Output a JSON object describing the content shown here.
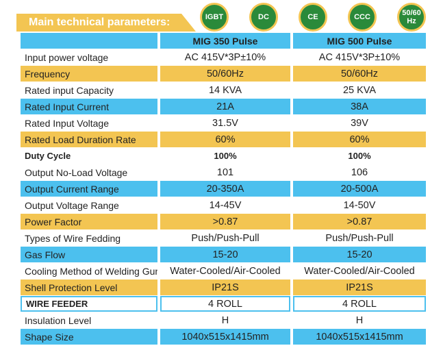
{
  "header": {
    "title": "Main technical parameters:",
    "badges": [
      "IGBT",
      "DC",
      "CE",
      "CCC",
      "50/60 Hz"
    ]
  },
  "table": {
    "columns": [
      "MIG 350 Pulse",
      "MIG 500 Pulse"
    ],
    "rows": [
      [
        "Input power voltage",
        "AC 415V*3P±10%",
        "AC 415V*3P±10%"
      ],
      [
        "Frequency",
        "50/60Hz",
        "50/60Hz"
      ],
      [
        "Rated input Capacity",
        "14 KVA",
        "25 KVA"
      ],
      [
        "Rated Input Current",
        "21A",
        "38A"
      ],
      [
        "Rated Input Voltage",
        "31.5V",
        "39V"
      ],
      [
        "Rated Load Duration Rate",
        "60%",
        "60%"
      ],
      [
        "Duty Cycle",
        "100%",
        "100%"
      ],
      [
        "Output No-Load Voltage",
        "101",
        "106"
      ],
      [
        "Output Current Range",
        "20-350A",
        "20-500A"
      ],
      [
        "Output Voltage Range",
        "14-45V",
        "14-50V"
      ],
      [
        "Power Factor",
        ">0.87",
        ">0.87"
      ],
      [
        "Types of Wire Fedding",
        "Push/Push-Pull",
        "Push/Push-Pull"
      ],
      [
        "Gas Flow",
        "15-20",
        "15-20"
      ],
      [
        "Cooling Method of Welding Gun",
        "Water-Cooled/Air-Cooled",
        "Water-Cooled/Air-Cooled"
      ],
      [
        "Shell Protection Level",
        "IP21S",
        "IP21S"
      ],
      [
        "WIRE FEEDER",
        "4 ROLL",
        "4 ROLL"
      ],
      [
        "Insulation Level",
        "H",
        "H"
      ],
      [
        "Shape Size",
        "1040x515x1415mm",
        "1040x515x1415mm"
      ]
    ]
  }
}
